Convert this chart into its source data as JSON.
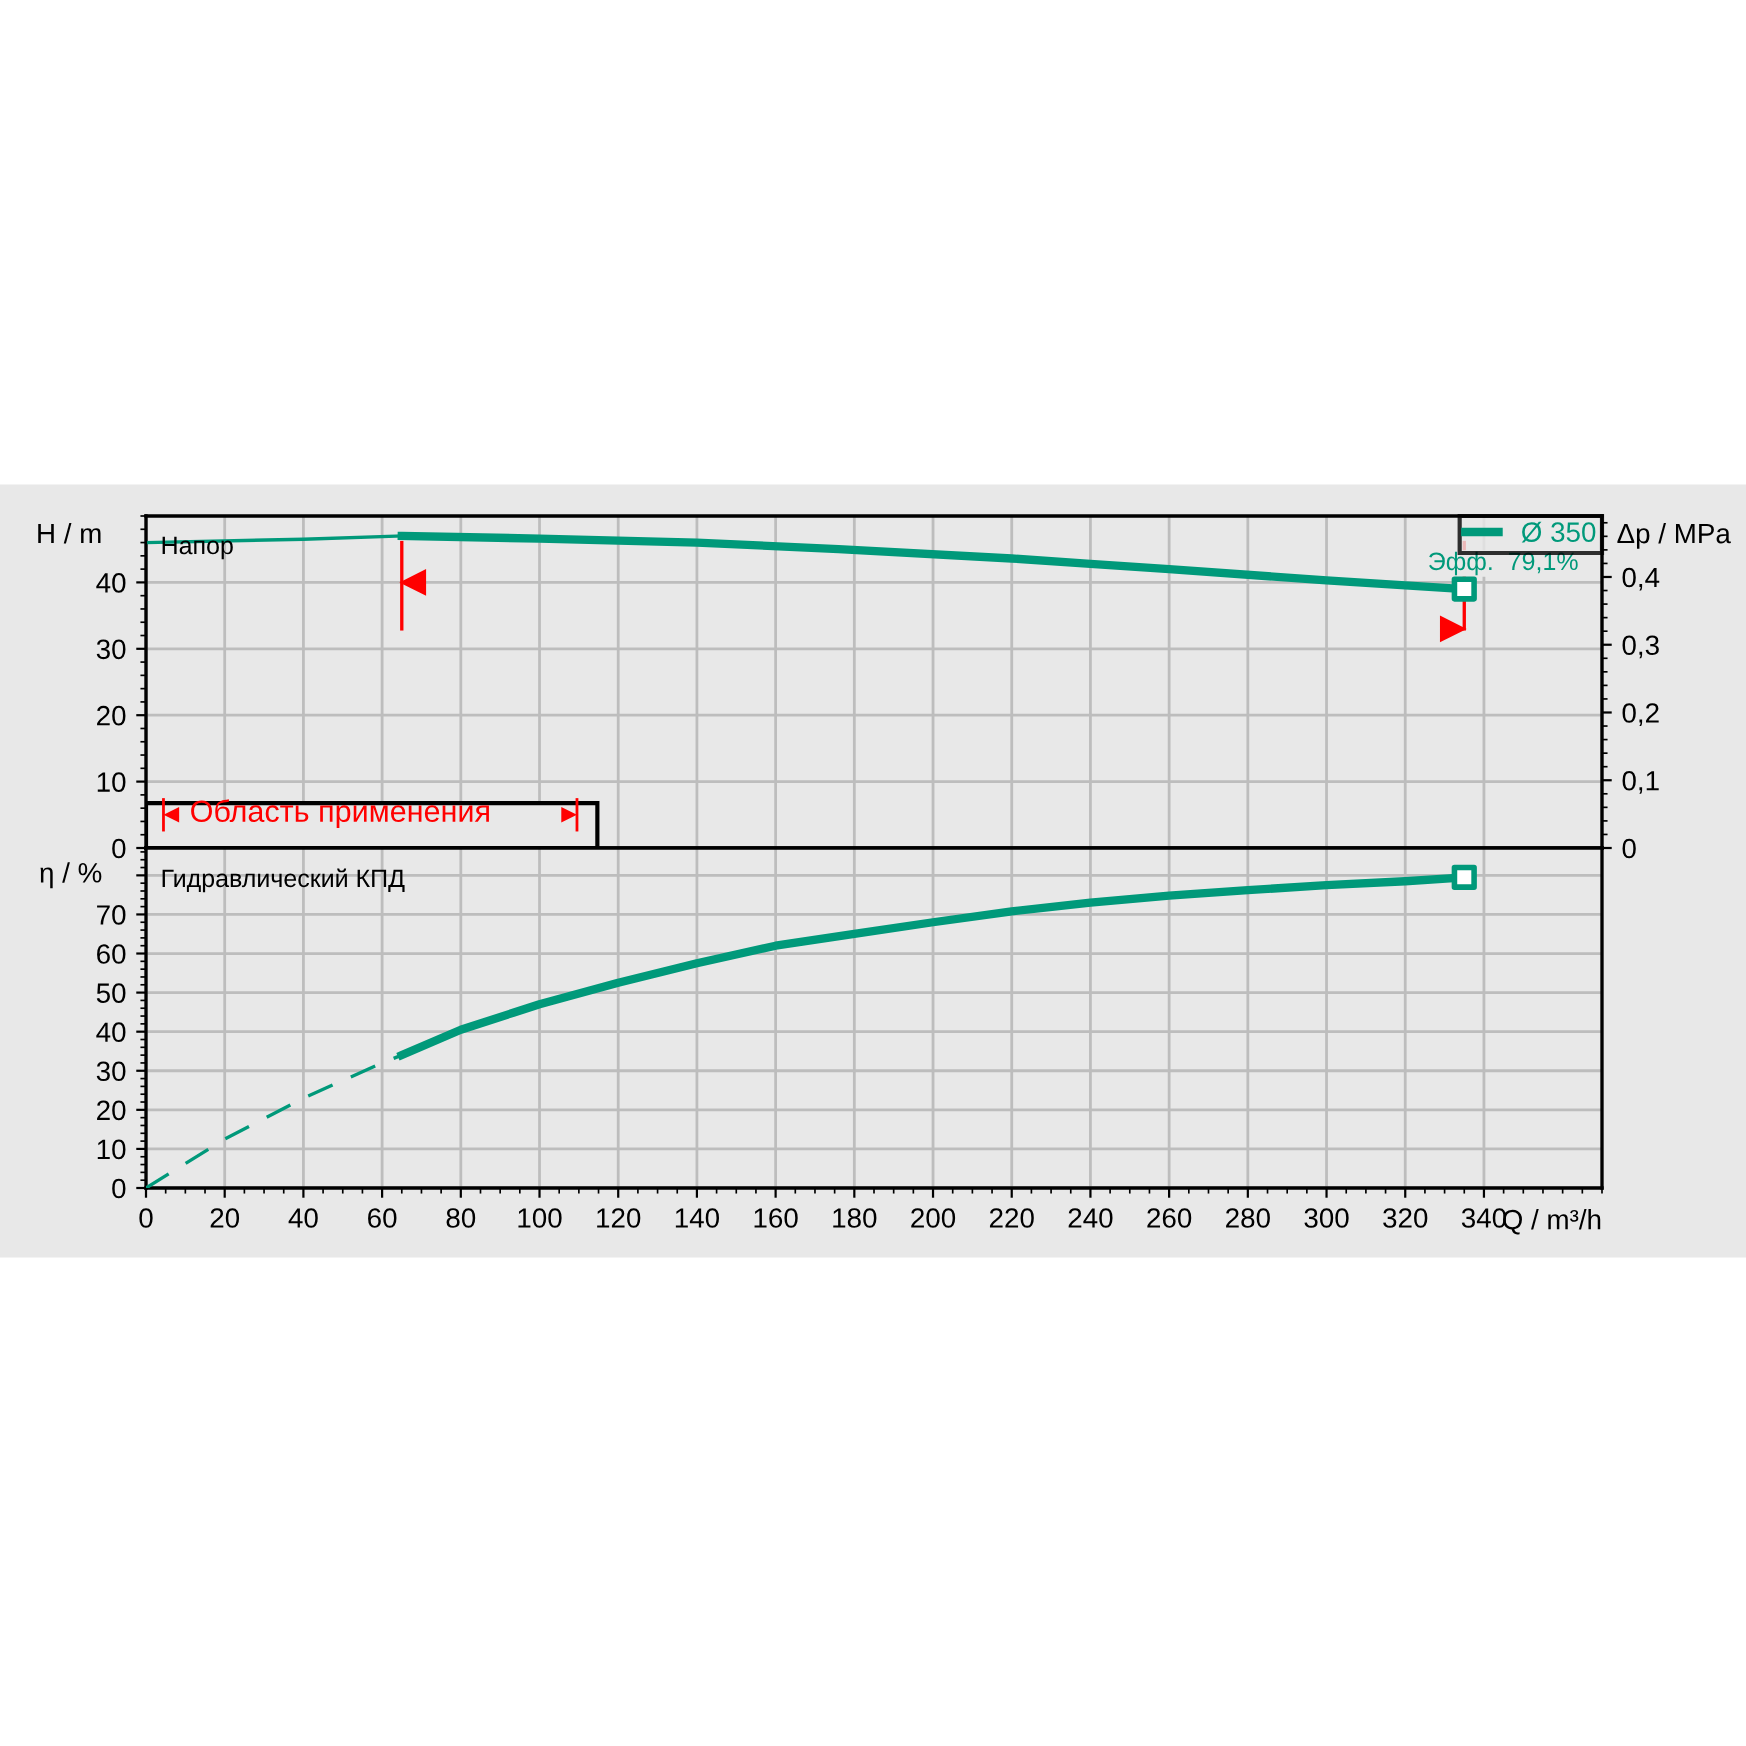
{
  "chart_data": [
    {
      "type": "line",
      "ylabel": "H / m",
      "y2label": "Δp / MPa",
      "xlim": [
        0,
        370
      ],
      "ylim": [
        0,
        50
      ],
      "y2lim": [
        0,
        0.49
      ],
      "yticks": [
        0,
        10,
        20,
        30,
        40
      ],
      "y2ticks": [
        0,
        {
          "value": 0.1,
          "label": "0,1"
        },
        {
          "value": 0.2,
          "label": "0,2"
        },
        {
          "value": 0.3,
          "label": "0,3"
        },
        {
          "value": 0.4,
          "label": "0,4"
        }
      ],
      "xticks": [
        0,
        20,
        40,
        60,
        80,
        100,
        120,
        140,
        160,
        180,
        200,
        220,
        240,
        260,
        280,
        300,
        320,
        340
      ],
      "tick_labels": "y",
      "grid": true,
      "legend": "top right",
      "series": [
        {
          "x": [
            0,
            40,
            65
          ],
          "values": [
            46,
            46.5,
            47
          ],
          "color": "#00997a",
          "line_style": "solid"
        },
        {
          "name": "Ø 350",
          "x": [
            65,
            100,
            140,
            176,
            220,
            240,
            260,
            300,
            335
          ],
          "values": [
            47,
            46.6,
            46,
            45,
            43.6,
            42.8,
            42,
            40.3,
            39
          ],
          "color": "#00997a",
          "line_style": "solid"
        },
        {
          "type": "scatter",
          "x": [
            335
          ],
          "values": [
            39
          ],
          "color": "#00997a",
          "marker": "square"
        }
      ],
      "ref_lines": [
        {
          "axis": "x",
          "value": 65,
          "color": "#ff0000"
        },
        {
          "axis": "x",
          "value": 335,
          "color": "#ff0000"
        }
      ],
      "annotations": [
        "Напор",
        {
          "text": "Эфф.  79,1%",
          "x": 335,
          "y": 39
        },
        "Область применения"
      ]
    },
    {
      "type": "line",
      "ylabel": "η / %",
      "xlabel": "Q / m³/h",
      "xlim": [
        0,
        370
      ],
      "ylim": [
        0,
        87
      ],
      "yticks": [
        0,
        10,
        20,
        30,
        40,
        50,
        60,
        70,
        {
          "value": 80,
          "label": null
        }
      ],
      "xticks": [
        0,
        20,
        40,
        60,
        80,
        100,
        120,
        140,
        160,
        180,
        200,
        220,
        240,
        260,
        280,
        300,
        320,
        340
      ],
      "grid": true,
      "series": [
        {
          "x": [
            0,
            20,
            40,
            60,
            65
          ],
          "values": [
            0,
            12.5,
            23,
            32,
            34
          ],
          "color": "#00997a",
          "line_style": "dashed"
        },
        {
          "x": [
            65,
            80,
            100,
            120,
            140,
            160,
            180,
            200,
            220,
            240,
            260,
            280,
            300,
            320,
            335
          ],
          "values": [
            34,
            40.5,
            47,
            52.5,
            57.5,
            62,
            65,
            68,
            70.8,
            73,
            74.8,
            76.2,
            77.5,
            78.5,
            79.5
          ],
          "color": "#00997a",
          "line_style": "solid"
        },
        {
          "type": "scatter",
          "x": [
            335
          ],
          "values": [
            79.5
          ],
          "color": "#00997a",
          "marker": "square"
        }
      ],
      "annotations": [
        "Гидравлический КПД"
      ]
    }
  ]
}
